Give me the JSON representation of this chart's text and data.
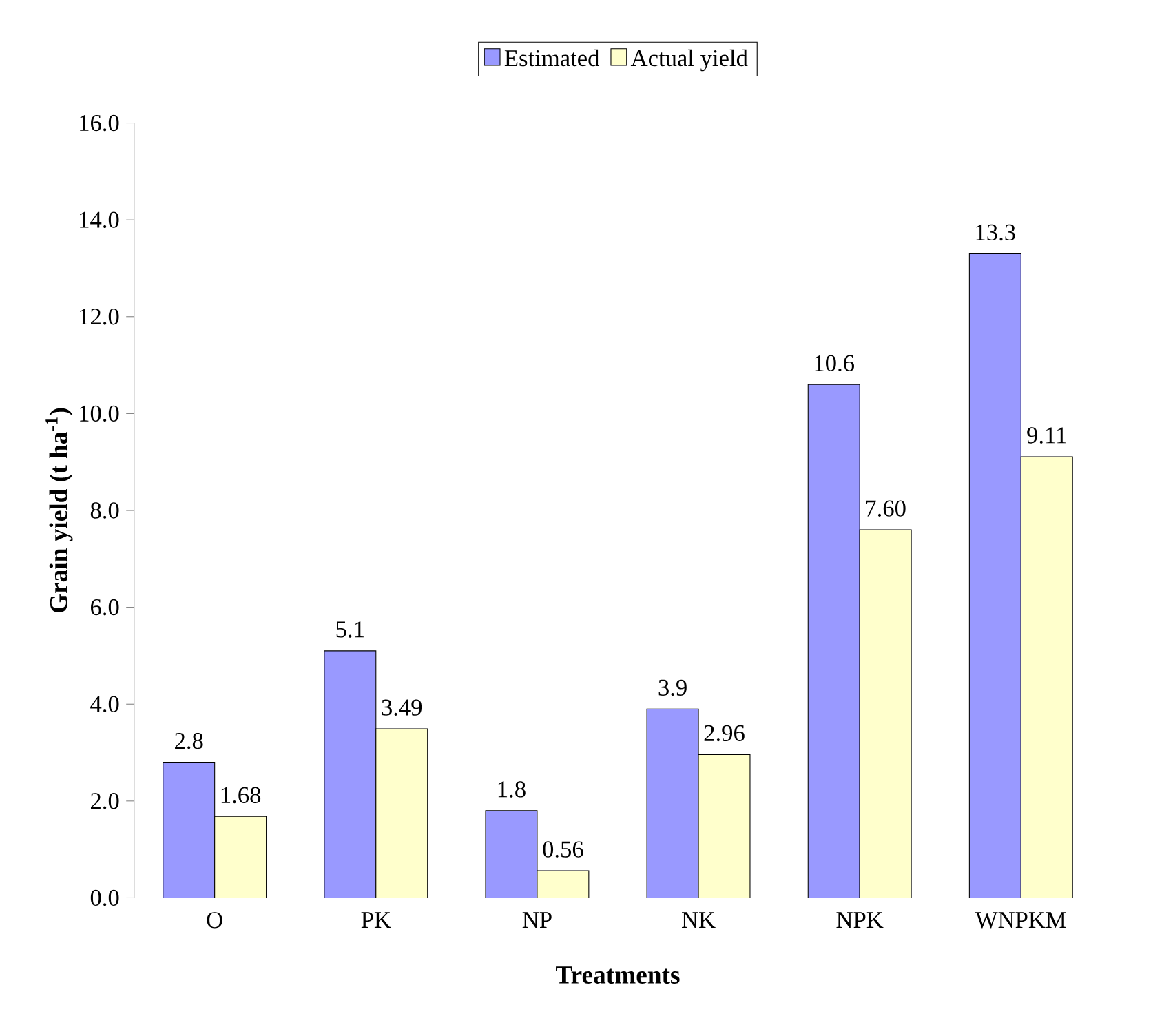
{
  "chart_data": {
    "type": "bar",
    "xlabel": "Treatments",
    "ylabel": "Grain yield (t ha$^{-1}$)",
    "categories": [
      "O",
      "PK",
      "NP",
      "NK",
      "NPK",
      "WNPKM"
    ],
    "series": [
      {
        "name": "Estimated",
        "color": "#9999ff",
        "values": [
          2.8,
          5.1,
          1.8,
          3.9,
          10.6,
          13.3
        ],
        "value_labels": [
          "2.8",
          "5.1",
          "1.8",
          "3.9",
          "10.6",
          "13.3"
        ]
      },
      {
        "name": "Actual yield",
        "color": "#ffffcc",
        "values": [
          1.68,
          3.49,
          0.56,
          2.96,
          7.6,
          9.11
        ],
        "value_labels": [
          "1.68",
          "3.49",
          "0.56",
          "2.96",
          "7.60",
          "9.11"
        ]
      }
    ],
    "ylim": [
      0,
      16
    ],
    "yticks": [
      {
        "value": 0,
        "label": "0.0"
      },
      {
        "value": 2,
        "label": "2.0"
      },
      {
        "value": 4,
        "label": "4.0"
      },
      {
        "value": 6,
        "label": "6.0"
      },
      {
        "value": 8,
        "label": "8.0"
      },
      {
        "value": 10,
        "label": "10.0"
      },
      {
        "value": 12,
        "label": "12.0"
      },
      {
        "value": 14,
        "label": "14.0"
      },
      {
        "value": 16,
        "label": "16.0"
      }
    ],
    "grid": false,
    "legend": "top"
  }
}
